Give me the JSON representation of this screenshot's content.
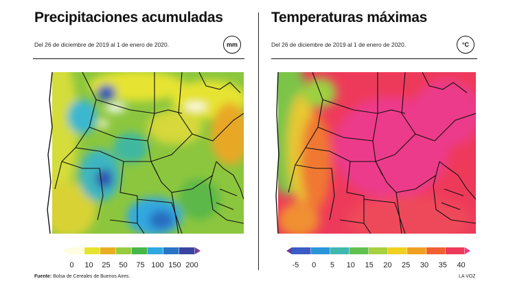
{
  "left_panel": {
    "title": "Precipitaciones acumuladas",
    "subtitle": "Del 26 de diciembre de 2019 al 1 de enero de 2020.",
    "unit": "mm",
    "legend": {
      "ticks": [
        "0",
        "10",
        "25",
        "50",
        "75",
        "100",
        "150",
        "200"
      ],
      "colors": [
        "#fffde0",
        "#e6e330",
        "#e8b020",
        "#98cc40",
        "#48b648",
        "#30a8e0",
        "#2a74c6",
        "#3a44a0",
        "#7a3a96"
      ]
    }
  },
  "right_panel": {
    "title": "Temperaturas máximas",
    "subtitle": "Del 26 de diciembre de 2019 al 1 de enero de 2020.",
    "unit": "°C",
    "legend": {
      "ticks": [
        "-5",
        "0",
        "5",
        "10",
        "15",
        "20",
        "25",
        "30",
        "35",
        "40"
      ],
      "colors": [
        "#6a3aa0",
        "#3a5cc6",
        "#2a96d8",
        "#40b8b0",
        "#60c050",
        "#a8d040",
        "#f0d020",
        "#f0a020",
        "#f06030",
        "#ee3a5a",
        "#ec3a8a"
      ]
    }
  },
  "footer": {
    "source_label": "Fuente:",
    "source_text": "Bolsa de Cereales de Buenos Aires.",
    "credit": "LA VOZ"
  }
}
